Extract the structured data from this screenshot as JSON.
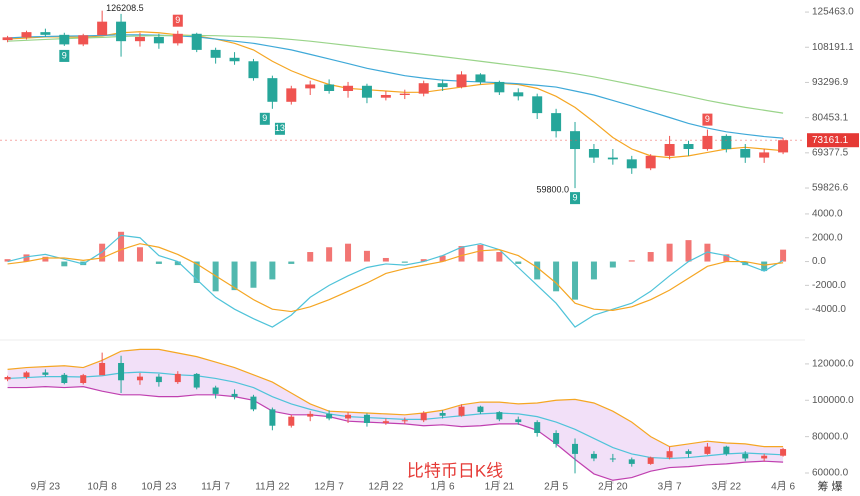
{
  "chart_data": {
    "type": "candlestick",
    "title": "比特币日K线",
    "footer_text": "筹 爆",
    "xlim": [
      0,
      212
    ],
    "xticks": [
      {
        "value": 12,
        "label": "9月 23"
      },
      {
        "value": 27,
        "label": "10月 8"
      },
      {
        "value": 42,
        "label": "10月 23"
      },
      {
        "value": 57,
        "label": "11月 7"
      },
      {
        "value": 72,
        "label": "11月 22"
      },
      {
        "value": 87,
        "label": "12月 7"
      },
      {
        "value": 102,
        "label": "12月 22"
      },
      {
        "value": 117,
        "label": "1月 6"
      },
      {
        "value": 132,
        "label": "1月 21"
      },
      {
        "value": 147,
        "label": "2月 5"
      },
      {
        "value": 162,
        "label": "2月 20"
      },
      {
        "value": 177,
        "label": "3月 7"
      },
      {
        "value": 192,
        "label": "3月 22"
      },
      {
        "value": 207,
        "label": "4月 6"
      }
    ],
    "up_color": "#ef5350",
    "down_color": "#26a69a",
    "ylim": [
      55700,
      132000
    ],
    "log_scale": true,
    "yticks": [
      {
        "value": 125463,
        "label": "125463.0"
      },
      108191.1,
      93296.9,
      80453.1,
      69377.5,
      59826.6
    ],
    "candles": {
      "x": [
        2,
        7,
        12,
        17,
        22,
        27,
        32,
        37,
        42,
        47,
        52,
        57,
        62,
        67,
        72,
        77,
        82,
        87,
        92,
        97,
        102,
        107,
        112,
        117,
        122,
        127,
        132,
        137,
        142,
        147,
        152,
        157,
        162,
        167,
        172,
        177,
        182,
        187,
        192,
        197,
        202,
        207
      ],
      "open": [
        111500,
        112800,
        115300,
        114000,
        109500,
        113800,
        120500,
        111000,
        113000,
        110000,
        114500,
        107000,
        103500,
        102000,
        95000,
        86000,
        91000,
        92500,
        90000,
        92000,
        87500,
        88500,
        89000,
        93000,
        91500,
        96500,
        93500,
        89500,
        88000,
        82000,
        76000,
        70500,
        68000,
        67500,
        65000,
        68500,
        72000,
        70500,
        74500,
        70500,
        68000,
        69500
      ],
      "high": [
        113500,
        116000,
        117000,
        115000,
        114500,
        126208.5,
        124500,
        115000,
        114500,
        116000,
        115000,
        108000,
        106000,
        103000,
        96000,
        92000,
        94000,
        94500,
        93500,
        92800,
        90000,
        90500,
        94000,
        94500,
        97800,
        97000,
        94000,
        91000,
        89000,
        83500,
        79000,
        72000,
        70500,
        68500,
        69000,
        74500,
        73000,
        76500,
        75000,
        72000,
        70500,
        73800
      ],
      "low": [
        110500,
        111800,
        113000,
        108800,
        108700,
        119000,
        104000,
        108500,
        107500,
        109000,
        106000,
        101000,
        100500,
        94000,
        83500,
        85000,
        88500,
        89000,
        87500,
        85500,
        86500,
        87000,
        88000,
        90000,
        91000,
        92500,
        88500,
        86500,
        80000,
        74000,
        59800,
        66500,
        66000,
        63500,
        64500,
        67500,
        68500,
        70000,
        69500,
        66500,
        66500,
        69000
      ],
      "close": [
        112800,
        115300,
        114000,
        109500,
        113800,
        120500,
        111000,
        113000,
        110000,
        114500,
        107000,
        103500,
        102000,
        95000,
        86000,
        91000,
        92500,
        90000,
        92000,
        87500,
        88500,
        89000,
        93000,
        91500,
        96500,
        93500,
        89500,
        88000,
        82000,
        76000,
        70500,
        68000,
        67500,
        65000,
        68500,
        72000,
        70500,
        74500,
        70500,
        68000,
        69500,
        73161.1
      ],
      "low_labels": [
        null,
        null,
        null,
        null,
        null,
        null,
        null,
        null,
        null,
        null,
        null,
        null,
        null,
        null,
        null,
        null,
        null,
        null,
        null,
        null,
        null,
        null,
        null,
        null,
        null,
        null,
        null,
        null,
        null,
        null,
        "59800.0",
        null,
        null,
        null,
        null,
        null,
        null,
        null,
        null,
        null,
        null,
        null
      ]
    },
    "series": [
      {
        "color": "#f5a623",
        "values": [
          112000,
          112500,
          113000,
          113000,
          112800,
          113500,
          115000,
          115500,
          115000,
          114000,
          113500,
          112000,
          110000,
          107000,
          102000,
          98000,
          95000,
          92500,
          91000,
          90500,
          90000,
          89500,
          89500,
          90500,
          91500,
          92500,
          93000,
          92500,
          91000,
          88000,
          84000,
          79000,
          74000,
          70500,
          68500,
          68000,
          68500,
          69500,
          70500,
          71000,
          70500,
          70000
        ]
      },
      {
        "color": "#3fa9d8",
        "values": [
          112500,
          113000,
          113200,
          113400,
          113500,
          113700,
          114000,
          114000,
          113800,
          113500,
          113000,
          112000,
          111000,
          110000,
          108500,
          107000,
          105000,
          103000,
          101000,
          99000,
          97500,
          96000,
          95000,
          94200,
          93800,
          93500,
          93200,
          92800,
          92200,
          91500,
          90000,
          88500,
          86500,
          84500,
          82500,
          80500,
          78500,
          77000,
          75800,
          75000,
          74300,
          73800
        ]
      },
      {
        "color": "#9ad48a",
        "values": [
          111000,
          111400,
          111800,
          112200,
          112500,
          112800,
          113200,
          113500,
          113600,
          113700,
          113700,
          113600,
          113300,
          113000,
          112500,
          111800,
          111000,
          110000,
          109000,
          108000,
          107000,
          106000,
          105000,
          104000,
          103000,
          102000,
          101000,
          100000,
          99000,
          98000,
          96800,
          95500,
          94000,
          92500,
          91000,
          89500,
          88000,
          86500,
          85200,
          84000,
          83000,
          82000
        ]
      }
    ],
    "td_marks": [
      {
        "x": 17,
        "label": "9",
        "side": "below",
        "color": "#26a69a"
      },
      {
        "x": 47,
        "label": "9",
        "side": "above",
        "color": "#ef5350"
      },
      {
        "x": 70,
        "label": "9",
        "side": "below",
        "color": "#26a69a"
      },
      {
        "x": 74,
        "label": "13",
        "side": "below",
        "color": "#26a69a"
      },
      {
        "x": 152,
        "label": "9",
        "side": "below",
        "color": "#26a69a"
      },
      {
        "x": 187,
        "label": "9",
        "side": "above",
        "color": "#ef5350"
      }
    ],
    "macd": {
      "ylim": [
        -6170,
        4750
      ],
      "yticks": [
        {
          "value": 4000,
          "label": "4000.0"
        },
        {
          "value": 2000,
          "label": "2000.0"
        },
        {
          "value": 0,
          "label": "0.0"
        },
        {
          "value": -2000,
          "label": "-2000.0"
        },
        {
          "value": -4000,
          "label": "-4000.0"
        }
      ],
      "hist": [
        200,
        600,
        400,
        -400,
        -300,
        1500,
        2500,
        1200,
        -200,
        -300,
        -1800,
        -2500,
        -2400,
        -2200,
        -1500,
        -200,
        800,
        1200,
        1500,
        900,
        300,
        -100,
        200,
        500,
        1300,
        1400,
        800,
        -200,
        -1500,
        -2500,
        -3200,
        -1500,
        -500,
        100,
        800,
        1500,
        1800,
        1500,
        600,
        -300,
        -800,
        1000
      ],
      "dif": {
        "color": "#4fc3d9",
        "values": [
          0,
          400,
          600,
          200,
          -200,
          800,
          2200,
          2000,
          500,
          0,
          -1500,
          -3000,
          -4000,
          -4800,
          -5500,
          -4500,
          -3000,
          -2000,
          -1200,
          -500,
          -200,
          -300,
          0,
          500,
          1200,
          1500,
          1000,
          -500,
          -2000,
          -3500,
          -5500,
          -4500,
          -4000,
          -3500,
          -2500,
          -1200,
          0,
          800,
          500,
          -200,
          -800,
          100
        ]
      },
      "dea": {
        "color": "#f5a623",
        "values": [
          -200,
          0,
          300,
          300,
          100,
          300,
          1000,
          1500,
          1200,
          600,
          -200,
          -1200,
          -2200,
          -3200,
          -4000,
          -4200,
          -3800,
          -3200,
          -2500,
          -1800,
          -1000,
          -600,
          -300,
          0,
          500,
          900,
          1000,
          500,
          -500,
          -1800,
          -3500,
          -4000,
          -4100,
          -3800,
          -3200,
          -2400,
          -1400,
          -400,
          0,
          0,
          -300,
          -100
        ]
      }
    },
    "boll": {
      "ylim": [
        53400,
        130400
      ],
      "yticks": [
        {
          "value": 120000,
          "label": "120000.0"
        },
        {
          "value": 100000,
          "label": "100000.0"
        },
        {
          "value": 80000,
          "label": "80000.0"
        },
        {
          "value": 60000,
          "label": "60000.0"
        }
      ],
      "fill": "#ecd3f5",
      "upper": {
        "color": "#f5a623",
        "values": [
          117000,
          118000,
          118500,
          119000,
          118000,
          122000,
          127000,
          128000,
          128000,
          126000,
          124000,
          121000,
          118000,
          114000,
          110000,
          104000,
          98000,
          94000,
          93500,
          93000,
          92500,
          92000,
          93000,
          94500,
          97500,
          99000,
          99000,
          98000,
          98500,
          100000,
          100500,
          98500,
          94000,
          88000,
          80000,
          74500,
          76000,
          77500,
          76500,
          76000,
          74500,
          74500
        ]
      },
      "lower": {
        "color": "#c040b0",
        "values": [
          107000,
          107000,
          107500,
          107000,
          107500,
          105000,
          103000,
          103000,
          102000,
          102000,
          103000,
          103000,
          102000,
          100000,
          94000,
          92000,
          92000,
          91000,
          88500,
          88000,
          87500,
          87000,
          86000,
          86500,
          85500,
          86000,
          87000,
          87000,
          83500,
          76000,
          67500,
          59500,
          56000,
          57500,
          61000,
          63000,
          63500,
          64500,
          65000,
          66000,
          66500,
          66000
        ]
      },
      "mid_color": "#4fc3d9"
    }
  }
}
